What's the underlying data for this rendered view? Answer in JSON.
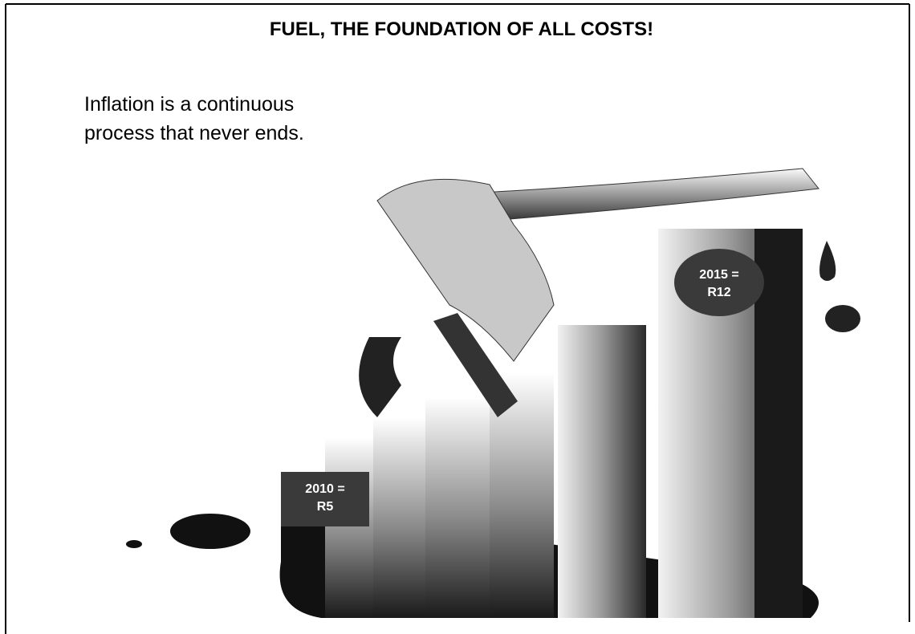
{
  "header": {
    "title": "FUEL, THE FOUNDATION OF ALL COSTS!"
  },
  "body": {
    "lines": [
      "Inflation is a continuous",
      "process that never ends."
    ]
  },
  "labels": [
    {
      "lines": [
        "2010 =",
        "R5"
      ]
    },
    {
      "lines": [
        "2015 =",
        "R12"
      ]
    }
  ]
}
